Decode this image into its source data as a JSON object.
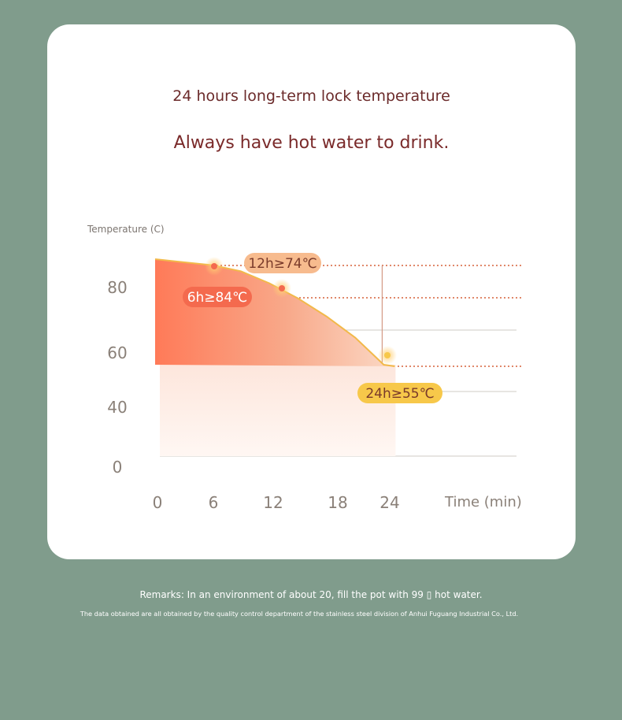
{
  "header": {
    "title": "24 hours long-term lock temperature",
    "subtitle": "Always have hot water to drink."
  },
  "footer": {
    "remarks": "Remarks: In an environment of about 20, fill the pot with 99 ▯ hot water.",
    "note": "The data obtained are all obtained by the quality control department of the stainless steel division of Anhui Fuguang Industrial Co., Ltd."
  },
  "colors": {
    "fill_top": "#ff7a58",
    "fill_fade": "#fde4d8",
    "curve": "#f2b94a",
    "dotted": "#e0886a",
    "tag_6h": "#f46a4e",
    "tag_12h": "#f7bb8e",
    "tag_24h": "#f7c84a",
    "tick_text": "#8a8078"
  },
  "chart_data": {
    "type": "area",
    "ylabel": "Temperature (C)",
    "xlabel": "Time (min)",
    "x_ticks": [
      "0",
      "6",
      "12",
      "18",
      "24"
    ],
    "y_ticks": [
      "0",
      "40",
      "60",
      "80"
    ],
    "series": [
      {
        "x": [
          0,
          3,
          6,
          9,
          12,
          15,
          18,
          21,
          24
        ],
        "values": [
          90,
          89,
          88,
          86,
          82,
          77,
          71,
          64,
          55
        ]
      }
    ],
    "annotations": [
      {
        "x": 6,
        "y": 88,
        "label": "6h≥84℃"
      },
      {
        "x": 12,
        "y": 82,
        "label": "12h≥74℃"
      },
      {
        "x": 24,
        "y": 55,
        "label": "24h≥55℃"
      }
    ],
    "grid": true
  }
}
